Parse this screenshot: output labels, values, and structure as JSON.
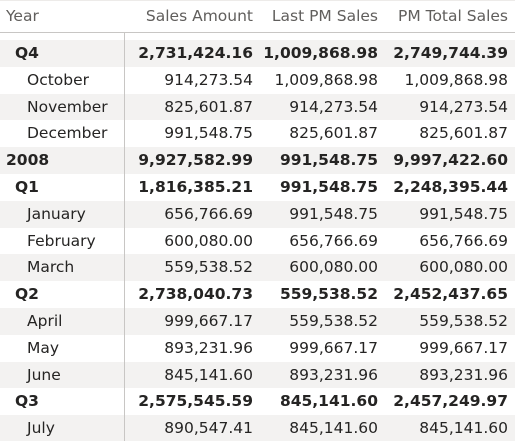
{
  "headers": {
    "rowlabel": "Year",
    "sales_amount": "Sales Amount",
    "last_pm_sales": "Last PM Sales",
    "pm_total_sales": "PM Total Sales"
  },
  "rows": [
    {
      "label": "Q4",
      "level": "quarter",
      "sales": "2,731,424.16",
      "last_pm": "1,009,868.98",
      "pm_total": "2,749,744.39"
    },
    {
      "label": "October",
      "level": "month",
      "sales": "914,273.54",
      "last_pm": "1,009,868.98",
      "pm_total": "1,009,868.98"
    },
    {
      "label": "November",
      "level": "month",
      "sales": "825,601.87",
      "last_pm": "914,273.54",
      "pm_total": "914,273.54"
    },
    {
      "label": "December",
      "level": "month",
      "sales": "991,548.75",
      "last_pm": "825,601.87",
      "pm_total": "825,601.87"
    },
    {
      "label": "2008",
      "level": "year",
      "sales": "9,927,582.99",
      "last_pm": "991,548.75",
      "pm_total": "9,997,422.60"
    },
    {
      "label": "Q1",
      "level": "quarter",
      "sales": "1,816,385.21",
      "last_pm": "991,548.75",
      "pm_total": "2,248,395.44"
    },
    {
      "label": "January",
      "level": "month",
      "sales": "656,766.69",
      "last_pm": "991,548.75",
      "pm_total": "991,548.75"
    },
    {
      "label": "February",
      "level": "month",
      "sales": "600,080.00",
      "last_pm": "656,766.69",
      "pm_total": "656,766.69"
    },
    {
      "label": "March",
      "level": "month",
      "sales": "559,538.52",
      "last_pm": "600,080.00",
      "pm_total": "600,080.00"
    },
    {
      "label": "Q2",
      "level": "quarter",
      "sales": "2,738,040.73",
      "last_pm": "559,538.52",
      "pm_total": "2,452,437.65"
    },
    {
      "label": "April",
      "level": "month",
      "sales": "999,667.17",
      "last_pm": "559,538.52",
      "pm_total": "559,538.52"
    },
    {
      "label": "May",
      "level": "month",
      "sales": "893,231.96",
      "last_pm": "999,667.17",
      "pm_total": "999,667.17"
    },
    {
      "label": "June",
      "level": "month",
      "sales": "845,141.60",
      "last_pm": "893,231.96",
      "pm_total": "893,231.96"
    },
    {
      "label": "Q3",
      "level": "quarter",
      "sales": "2,575,545.59",
      "last_pm": "845,141.60",
      "pm_total": "2,457,249.97"
    },
    {
      "label": "July",
      "level": "month",
      "sales": "890,547.41",
      "last_pm": "845,141.60",
      "pm_total": "845,141.60"
    }
  ],
  "colors": {
    "text": "#252423",
    "header_text": "#605e5c",
    "row_shade": "#f3f2f1",
    "grid_line": "#c8c6c4"
  }
}
